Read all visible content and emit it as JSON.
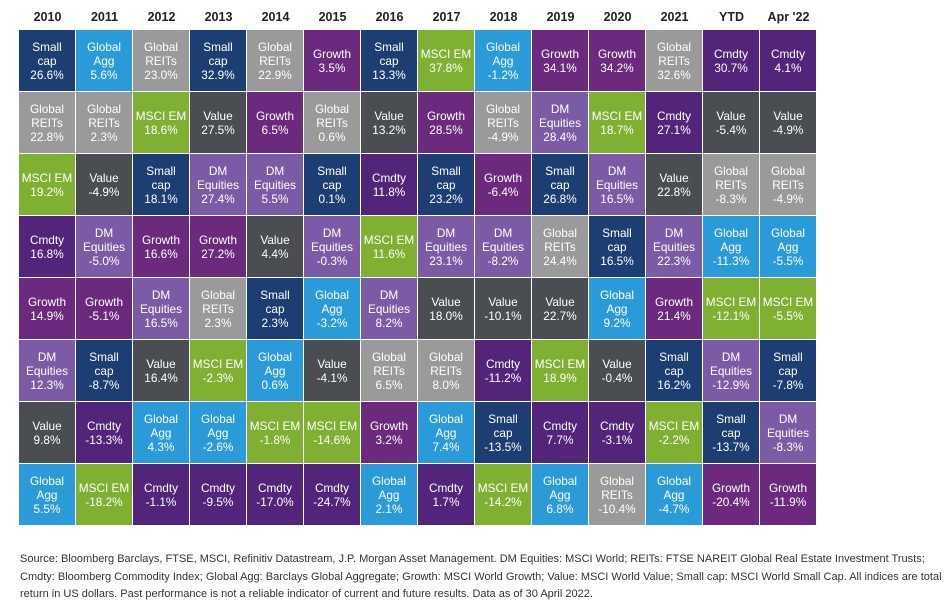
{
  "asset_colors": {
    "Small cap": "#1c3e72",
    "Global Agg": "#2a9bd8",
    "Global REITs": "#9a9a9a",
    "Growth": "#6b2a7e",
    "MSCI EM": "#7fb032",
    "Cmdty": "#52247a",
    "Value": "#4a4e52",
    "DM Equities": "#7c5ba6"
  },
  "chart_data": {
    "type": "table",
    "title": "",
    "columns": [
      "2010",
      "2011",
      "2012",
      "2013",
      "2014",
      "2015",
      "2016",
      "2017",
      "2018",
      "2019",
      "2020",
      "2021",
      "YTD",
      "Apr '22"
    ],
    "rows": [
      [
        {
          "asset": "Small\ncap",
          "key": "Small cap",
          "value": "26.6%"
        },
        {
          "asset": "Global\nAgg",
          "key": "Global Agg",
          "value": "5.6%"
        },
        {
          "asset": "Global\nREITs",
          "key": "Global REITs",
          "value": "23.0%"
        },
        {
          "asset": "Small\ncap",
          "key": "Small cap",
          "value": "32.9%"
        },
        {
          "asset": "Global\nREITs",
          "key": "Global REITs",
          "value": "22.9%"
        },
        {
          "asset": "Growth",
          "key": "Growth",
          "value": "3.5%"
        },
        {
          "asset": "Small\ncap",
          "key": "Small cap",
          "value": "13.3%"
        },
        {
          "asset": "MSCI EM",
          "key": "MSCI EM",
          "value": "37.8%"
        },
        {
          "asset": "Global\nAgg",
          "key": "Global Agg",
          "value": "-1.2%"
        },
        {
          "asset": "Growth",
          "key": "Growth",
          "value": "34.1%"
        },
        {
          "asset": "Growth",
          "key": "Growth",
          "value": "34.2%"
        },
        {
          "asset": "Global\nREITs",
          "key": "Global REITs",
          "value": "32.6%"
        },
        {
          "asset": "Cmdty",
          "key": "Cmdty",
          "value": "30.7%"
        },
        {
          "asset": "Cmdty",
          "key": "Cmdty",
          "value": "4.1%"
        }
      ],
      [
        {
          "asset": "Global\nREITs",
          "key": "Global REITs",
          "value": "22.8%"
        },
        {
          "asset": "Global\nREITs",
          "key": "Global REITs",
          "value": "2.3%"
        },
        {
          "asset": "MSCI EM",
          "key": "MSCI EM",
          "value": "18.6%"
        },
        {
          "asset": "Value",
          "key": "Value",
          "value": "27.5%"
        },
        {
          "asset": "Growth",
          "key": "Growth",
          "value": "6.5%"
        },
        {
          "asset": "Global\nREITs",
          "key": "Global REITs",
          "value": "0.6%"
        },
        {
          "asset": "Value",
          "key": "Value",
          "value": "13.2%"
        },
        {
          "asset": "Growth",
          "key": "Growth",
          "value": "28.5%"
        },
        {
          "asset": "Global\nREITs",
          "key": "Global REITs",
          "value": "-4.9%"
        },
        {
          "asset": "DM\nEquities",
          "key": "DM Equities",
          "value": "28.4%"
        },
        {
          "asset": "MSCI EM",
          "key": "MSCI EM",
          "value": "18.7%"
        },
        {
          "asset": "Cmdty",
          "key": "Cmdty",
          "value": "27.1%"
        },
        {
          "asset": "Value",
          "key": "Value",
          "value": "-5.4%"
        },
        {
          "asset": "Value",
          "key": "Value",
          "value": "-4.9%"
        }
      ],
      [
        {
          "asset": "MSCI EM",
          "key": "MSCI EM",
          "value": "19.2%"
        },
        {
          "asset": "Value",
          "key": "Value",
          "value": "-4.9%"
        },
        {
          "asset": "Small\ncap",
          "key": "Small cap",
          "value": "18.1%"
        },
        {
          "asset": "DM\nEquities",
          "key": "DM Equities",
          "value": "27.4%"
        },
        {
          "asset": "DM\nEquities",
          "key": "DM Equities",
          "value": "5.5%"
        },
        {
          "asset": "Small\ncap",
          "key": "Small cap",
          "value": "0.1%"
        },
        {
          "asset": "Cmdty",
          "key": "Cmdty",
          "value": "11.8%"
        },
        {
          "asset": "Small\ncap",
          "key": "Small cap",
          "value": "23.2%"
        },
        {
          "asset": "Growth",
          "key": "Growth",
          "value": "-6.4%"
        },
        {
          "asset": "Small\ncap",
          "key": "Small cap",
          "value": "26.8%"
        },
        {
          "asset": "DM\nEquities",
          "key": "DM Equities",
          "value": "16.5%"
        },
        {
          "asset": "Value",
          "key": "Value",
          "value": "22.8%"
        },
        {
          "asset": "Global\nREITs",
          "key": "Global REITs",
          "value": "-8.3%"
        },
        {
          "asset": "Global\nREITs",
          "key": "Global REITs",
          "value": "-4.9%"
        }
      ],
      [
        {
          "asset": "Cmdty",
          "key": "Cmdty",
          "value": "16.8%"
        },
        {
          "asset": "DM\nEquities",
          "key": "DM Equities",
          "value": "-5.0%"
        },
        {
          "asset": "Growth",
          "key": "Growth",
          "value": "16.6%"
        },
        {
          "asset": "Growth",
          "key": "Growth",
          "value": "27.2%"
        },
        {
          "asset": "Value",
          "key": "Value",
          "value": "4.4%"
        },
        {
          "asset": "DM\nEquities",
          "key": "DM Equities",
          "value": "-0.3%"
        },
        {
          "asset": "MSCI EM",
          "key": "MSCI EM",
          "value": "11.6%"
        },
        {
          "asset": "DM\nEquities",
          "key": "DM Equities",
          "value": "23.1%"
        },
        {
          "asset": "DM\nEquities",
          "key": "DM Equities",
          "value": "-8.2%"
        },
        {
          "asset": "Global\nREITs",
          "key": "Global REITs",
          "value": "24.4%"
        },
        {
          "asset": "Small\ncap",
          "key": "Small cap",
          "value": "16.5%"
        },
        {
          "asset": "DM\nEquities",
          "key": "DM Equities",
          "value": "22.3%"
        },
        {
          "asset": "Global\nAgg",
          "key": "Global Agg",
          "value": "-11.3%"
        },
        {
          "asset": "Global\nAgg",
          "key": "Global Agg",
          "value": "-5.5%"
        }
      ],
      [
        {
          "asset": "Growth",
          "key": "Growth",
          "value": "14.9%"
        },
        {
          "asset": "Growth",
          "key": "Growth",
          "value": "-5.1%"
        },
        {
          "asset": "DM\nEquities",
          "key": "DM Equities",
          "value": "16.5%"
        },
        {
          "asset": "Global\nREITs",
          "key": "Global REITs",
          "value": "2.3%"
        },
        {
          "asset": "Small\ncap",
          "key": "Small cap",
          "value": "2.3%"
        },
        {
          "asset": "Global\nAgg",
          "key": "Global Agg",
          "value": "-3.2%"
        },
        {
          "asset": "DM\nEquities",
          "key": "DM Equities",
          "value": "8.2%"
        },
        {
          "asset": "Value",
          "key": "Value",
          "value": "18.0%"
        },
        {
          "asset": "Value",
          "key": "Value",
          "value": "-10.1%"
        },
        {
          "asset": "Value",
          "key": "Value",
          "value": "22.7%"
        },
        {
          "asset": "Global\nAgg",
          "key": "Global Agg",
          "value": "9.2%"
        },
        {
          "asset": "Growth",
          "key": "Growth",
          "value": "21.4%"
        },
        {
          "asset": "MSCI EM",
          "key": "MSCI EM",
          "value": "-12.1%"
        },
        {
          "asset": "MSCI EM",
          "key": "MSCI EM",
          "value": "-5.5%"
        }
      ],
      [
        {
          "asset": "DM\nEquities",
          "key": "DM Equities",
          "value": "12.3%"
        },
        {
          "asset": "Small\ncap",
          "key": "Small cap",
          "value": "-8.7%"
        },
        {
          "asset": "Value",
          "key": "Value",
          "value": "16.4%"
        },
        {
          "asset": "MSCI EM",
          "key": "MSCI EM",
          "value": "-2.3%"
        },
        {
          "asset": "Global\nAgg",
          "key": "Global Agg",
          "value": "0.6%"
        },
        {
          "asset": "Value",
          "key": "Value",
          "value": "-4.1%"
        },
        {
          "asset": "Global\nREITs",
          "key": "Global REITs",
          "value": "6.5%"
        },
        {
          "asset": "Global\nREITs",
          "key": "Global REITs",
          "value": "8.0%"
        },
        {
          "asset": "Cmdty",
          "key": "Cmdty",
          "value": "-11.2%"
        },
        {
          "asset": "MSCI EM",
          "key": "MSCI EM",
          "value": "18.9%"
        },
        {
          "asset": "Value",
          "key": "Value",
          "value": "-0.4%"
        },
        {
          "asset": "Small\ncap",
          "key": "Small cap",
          "value": "16.2%"
        },
        {
          "asset": "DM\nEquities",
          "key": "DM Equities",
          "value": "-12.9%"
        },
        {
          "asset": "Small\ncap",
          "key": "Small cap",
          "value": "-7.8%"
        }
      ],
      [
        {
          "asset": "Value",
          "key": "Value",
          "value": "9.8%"
        },
        {
          "asset": "Cmdty",
          "key": "Cmdty",
          "value": "-13.3%"
        },
        {
          "asset": "Global\nAgg",
          "key": "Global Agg",
          "value": "4.3%"
        },
        {
          "asset": "Global\nAgg",
          "key": "Global Agg",
          "value": "-2.6%"
        },
        {
          "asset": "MSCI EM",
          "key": "MSCI EM",
          "value": "-1.8%"
        },
        {
          "asset": "MSCI EM",
          "key": "MSCI EM",
          "value": "-14.6%"
        },
        {
          "asset": "Growth",
          "key": "Growth",
          "value": "3.2%"
        },
        {
          "asset": "Global\nAgg",
          "key": "Global Agg",
          "value": "7.4%"
        },
        {
          "asset": "Small\ncap",
          "key": "Small cap",
          "value": "-13.5%"
        },
        {
          "asset": "Cmdty",
          "key": "Cmdty",
          "value": "7.7%"
        },
        {
          "asset": "Cmdty",
          "key": "Cmdty",
          "value": "-3.1%"
        },
        {
          "asset": "MSCI EM",
          "key": "MSCI EM",
          "value": "-2.2%"
        },
        {
          "asset": "Small\ncap",
          "key": "Small cap",
          "value": "-13.7%"
        },
        {
          "asset": "DM\nEquities",
          "key": "DM Equities",
          "value": "-8.3%"
        }
      ],
      [
        {
          "asset": "Global\nAgg",
          "key": "Global Agg",
          "value": "5.5%"
        },
        {
          "asset": "MSCI EM",
          "key": "MSCI EM",
          "value": "-18.2%"
        },
        {
          "asset": "Cmdty",
          "key": "Cmdty",
          "value": "-1.1%"
        },
        {
          "asset": "Cmdty",
          "key": "Cmdty",
          "value": "-9.5%"
        },
        {
          "asset": "Cmdty",
          "key": "Cmdty",
          "value": "-17.0%"
        },
        {
          "asset": "Cmdty",
          "key": "Cmdty",
          "value": "-24.7%"
        },
        {
          "asset": "Global\nAgg",
          "key": "Global Agg",
          "value": "2.1%"
        },
        {
          "asset": "Cmdty",
          "key": "Cmdty",
          "value": "1.7%"
        },
        {
          "asset": "MSCI EM",
          "key": "MSCI EM",
          "value": "-14.2%"
        },
        {
          "asset": "Global\nAgg",
          "key": "Global Agg",
          "value": "6.8%"
        },
        {
          "asset": "Global\nREITs",
          "key": "Global REITs",
          "value": "-10.4%"
        },
        {
          "asset": "Global\nAgg",
          "key": "Global Agg",
          "value": "-4.7%"
        },
        {
          "asset": "Growth",
          "key": "Growth",
          "value": "-20.4%"
        },
        {
          "asset": "Growth",
          "key": "Growth",
          "value": "-11.9%"
        }
      ]
    ]
  },
  "source_note": "Source: Bloomberg Barclays, FTSE, MSCI, Refinitiv Datastream, J.P. Morgan Asset Management. DM Equities: MSCI World; REITs: FTSE NAREIT Global Real Estate Investment Trusts; Cmdty: Bloomberg Commodity Index; Global Agg: Barclays Global Aggregate; Growth: MSCI World Growth; Value: MSCI World Value; Small cap: MSCI World Small Cap. All indices are total return in US dollars. Past performance is not a reliable indicator of current and future results. Data as of 30 April 2022."
}
